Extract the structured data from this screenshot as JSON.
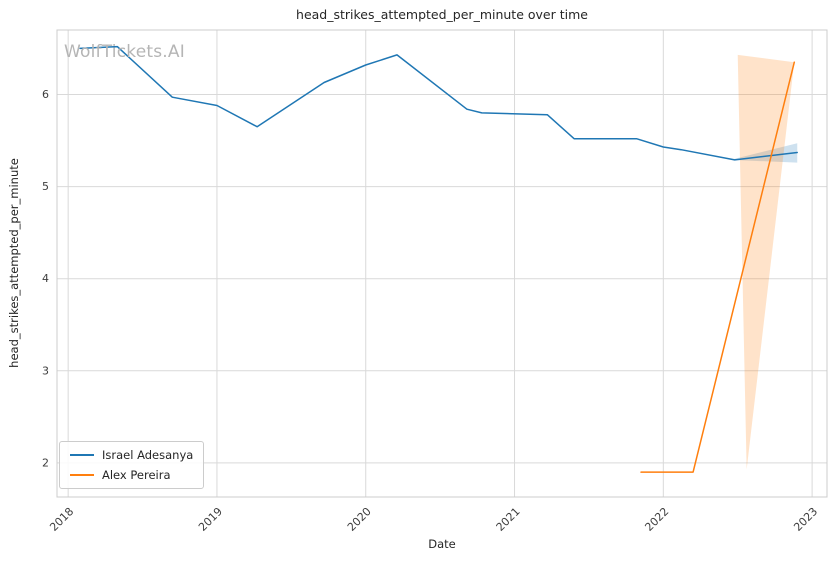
{
  "watermark": "WolfTickets.AI",
  "chart_data": {
    "type": "line",
    "title": "head_strikes_attempted_per_minute over time",
    "xlabel": "Date",
    "ylabel": "head_strikes_attempted_per_minute",
    "grid": true,
    "legend_position": "lower left",
    "xlim": [
      2017.925,
      2023.1
    ],
    "ylim": [
      1.63,
      6.7
    ],
    "x_ticks": [
      {
        "value": 2018,
        "label": "2018"
      },
      {
        "value": 2019,
        "label": "2019"
      },
      {
        "value": 2020,
        "label": "2020"
      },
      {
        "value": 2021,
        "label": "2021"
      },
      {
        "value": 2022,
        "label": "2022"
      },
      {
        "value": 2023,
        "label": "2023"
      }
    ],
    "y_ticks": [
      {
        "value": 2,
        "label": "2"
      },
      {
        "value": 3,
        "label": "3"
      },
      {
        "value": 4,
        "label": "4"
      },
      {
        "value": 5,
        "label": "5"
      },
      {
        "value": 6,
        "label": "6"
      }
    ],
    "colors": {
      "grid": "#d9d9d9",
      "spine": "#cccccc",
      "tick": "#3d3d3d",
      "text": "#262626",
      "background": "#ffffff"
    },
    "series": [
      {
        "name": "Israel Adesanya",
        "color": "#1f77b4",
        "x": [
          2018.08,
          2018.33,
          2018.7,
          2019.0,
          2019.27,
          2019.72,
          2020.0,
          2020.21,
          2020.68,
          2020.78,
          2021.22,
          2021.4,
          2021.82,
          2022.0,
          2022.12,
          2022.48,
          2022.9
        ],
        "y": [
          6.5,
          6.52,
          5.97,
          5.88,
          5.65,
          6.13,
          6.32,
          6.43,
          5.84,
          5.8,
          5.78,
          5.52,
          5.52,
          5.43,
          5.4,
          5.29,
          5.37
        ],
        "band": [
          [
            2022.45,
            5.29
          ],
          [
            2022.9,
            5.47
          ],
          [
            2022.9,
            5.26
          ]
        ]
      },
      {
        "name": "Alex Pereira",
        "color": "#ff7f0e",
        "x": [
          2021.85,
          2022.2,
          2022.88
        ],
        "y": [
          1.9,
          1.9,
          6.35
        ],
        "band": [
          [
            2022.5,
            6.43
          ],
          [
            2022.88,
            6.35
          ],
          [
            2022.56,
            1.93
          ]
        ]
      }
    ]
  }
}
